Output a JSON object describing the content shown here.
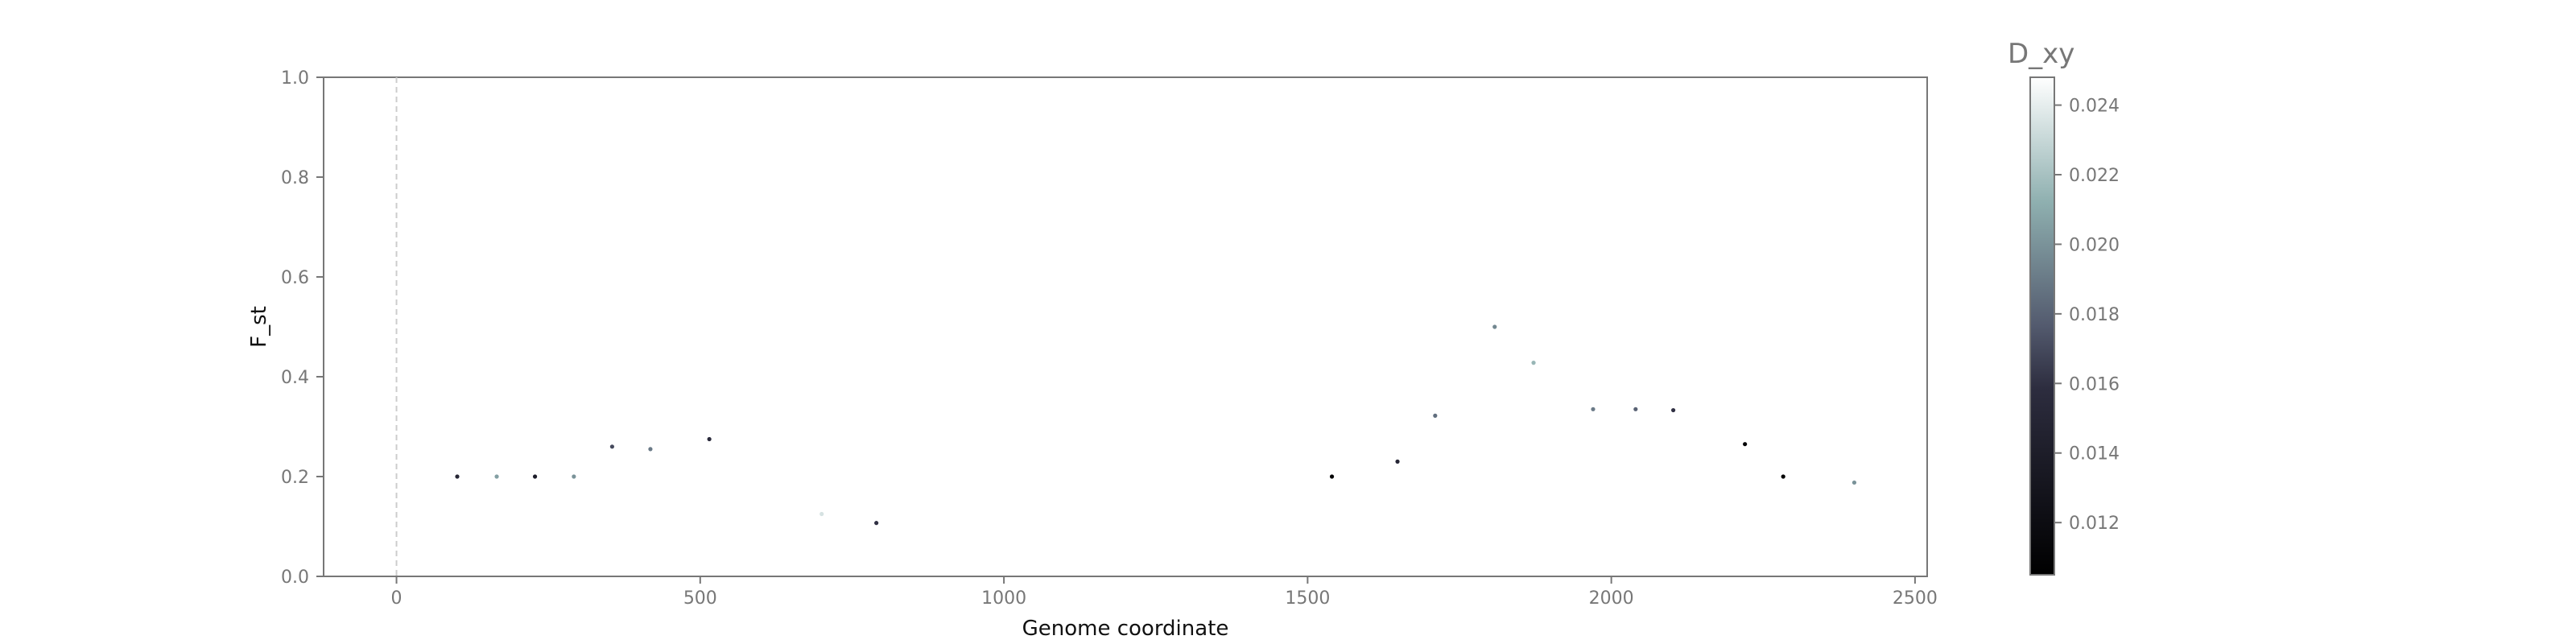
{
  "chart_data": {
    "type": "scatter",
    "title": "",
    "xlabel": "Genome coordinate",
    "ylabel": "F_st",
    "xlim": [
      -120,
      2520
    ],
    "ylim": [
      0.0,
      1.0
    ],
    "x_ticks": [
      0,
      500,
      1000,
      1500,
      2000,
      2500
    ],
    "y_ticks": [
      0.0,
      0.2,
      0.4,
      0.6,
      0.8,
      1.0
    ],
    "x_tick_labels": [
      "0",
      "500",
      "1000",
      "1500",
      "2000",
      "2500"
    ],
    "y_tick_labels": [
      "0.0",
      "0.2",
      "0.4",
      "0.6",
      "0.8",
      "1.0"
    ],
    "grid": false,
    "vline_x": 0,
    "color_encoding": "D_xy",
    "colorbar": {
      "title": "D_xy",
      "range": [
        0.0105,
        0.0248
      ],
      "ticks": [
        0.012,
        0.014,
        0.016,
        0.018,
        0.02,
        0.022,
        0.024
      ],
      "tick_labels": [
        "0.012",
        "0.014",
        "0.016",
        "0.018",
        "0.020",
        "0.022",
        "0.024"
      ],
      "colormap": "bone"
    },
    "points": [
      {
        "x": 100,
        "y": 0.2,
        "c": 0.015
      },
      {
        "x": 165,
        "y": 0.2,
        "c": 0.0205
      },
      {
        "x": 228,
        "y": 0.2,
        "c": 0.014
      },
      {
        "x": 292,
        "y": 0.2,
        "c": 0.02
      },
      {
        "x": 355,
        "y": 0.26,
        "c": 0.017
      },
      {
        "x": 418,
        "y": 0.255,
        "c": 0.019
      },
      {
        "x": 515,
        "y": 0.275,
        "c": 0.0155
      },
      {
        "x": 700,
        "y": 0.125,
        "c": 0.0235
      },
      {
        "x": 790,
        "y": 0.107,
        "c": 0.016
      },
      {
        "x": 1540,
        "y": 0.2,
        "c": 0.0108
      },
      {
        "x": 1648,
        "y": 0.23,
        "c": 0.015
      },
      {
        "x": 1710,
        "y": 0.322,
        "c": 0.0185
      },
      {
        "x": 1808,
        "y": 0.5,
        "c": 0.0195
      },
      {
        "x": 1872,
        "y": 0.428,
        "c": 0.0215
      },
      {
        "x": 1970,
        "y": 0.335,
        "c": 0.019
      },
      {
        "x": 2040,
        "y": 0.335,
        "c": 0.018
      },
      {
        "x": 2102,
        "y": 0.333,
        "c": 0.016
      },
      {
        "x": 2220,
        "y": 0.265,
        "c": 0.011
      },
      {
        "x": 2283,
        "y": 0.2,
        "c": 0.0106
      },
      {
        "x": 2400,
        "y": 0.188,
        "c": 0.02
      }
    ]
  }
}
